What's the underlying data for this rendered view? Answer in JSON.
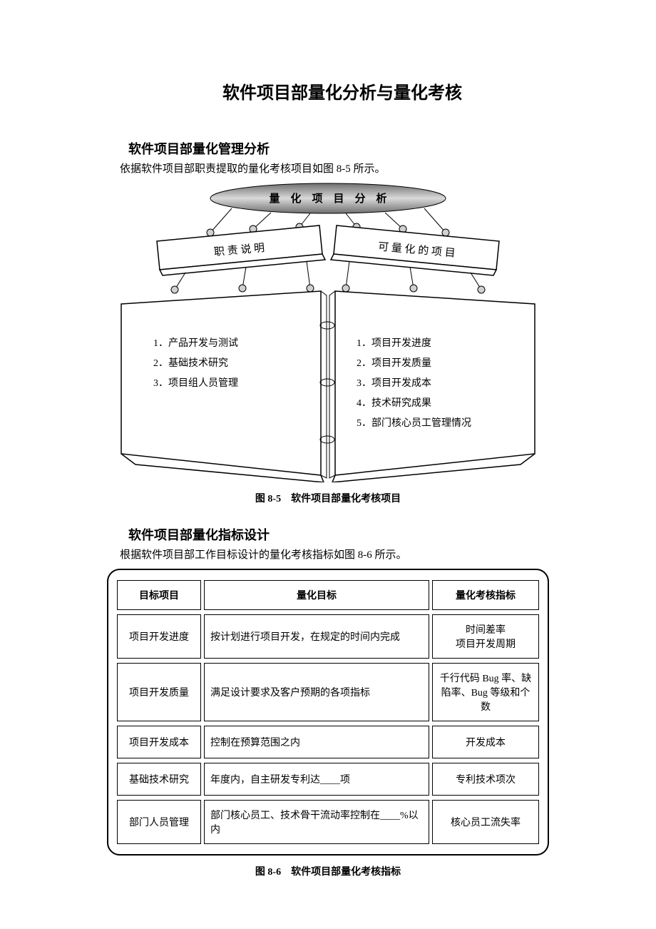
{
  "page_title": "软件项目部量化分析与量化考核",
  "section1": {
    "heading": "软件项目部量化管理分析",
    "intro": "依据软件项目部职责提取的量化考核项目如图 8-5 所示。"
  },
  "diagram": {
    "top_label": "量　化　项　目　分　析",
    "left_header": "职 责 说 明",
    "right_header": "可 量 化 的 项 目",
    "left_items": [
      "1．产品开发与测试",
      "2．基础技术研究",
      "3．项目组人员管理"
    ],
    "right_items": [
      "1．项目开发进度",
      "2．项目开发质量",
      "3．项目开发成本",
      "4．技术研究成果",
      "5．部门核心员工管理情况"
    ],
    "caption": "图 8-5　软件项目部量化考核项目",
    "colors": {
      "ellipse_grad_top": "#6f6f6f",
      "ellipse_grad_mid": "#d9d9d9",
      "ellipse_grad_bot": "#6f6f6f",
      "stroke": "#000000",
      "node_fill": "#d0d0d0",
      "page_fill": "#ffffff"
    }
  },
  "section2": {
    "heading": "软件项目部量化指标设计",
    "intro": "根据软件项目部工作目标设计的量化考核指标如图 8-6 所示。"
  },
  "table": {
    "headers": [
      "目标项目",
      "量化目标",
      "量化考核指标"
    ],
    "rows": [
      {
        "target": "项目开发进度",
        "goal": "按计划进行项目开发，在规定的时间内完成",
        "indicator": "时间差率\n项目开发周期"
      },
      {
        "target": "项目开发质量",
        "goal": "满足设计要求及客户预期的各项指标",
        "indicator": "千行代码 Bug 率、缺陷率、Bug 等级和个数"
      },
      {
        "target": "项目开发成本",
        "goal": "控制在预算范围之内",
        "indicator": "开发成本"
      },
      {
        "target": "基础技术研究",
        "goal": "年度内，自主研发专利达____项",
        "indicator": "专利技术项次"
      },
      {
        "target": "部门人员管理",
        "goal": "部门核心员工、技术骨干流动率控制在____%以内",
        "indicator": "核心员工流失率"
      }
    ],
    "caption": "图 8-6　软件项目部量化考核指标"
  }
}
